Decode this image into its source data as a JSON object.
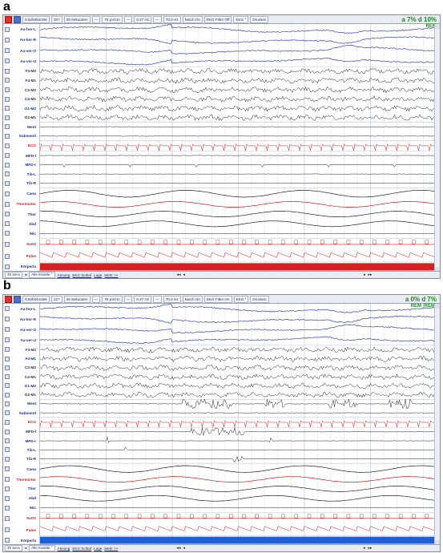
{
  "panels": [
    {
      "letter": "a",
      "toolbar": [
        "0:52h05m39s",
        "29?",
        "30 Sekunden",
        "—",
        "75 µV/cm",
        "—",
        "0.27 Hz",
        "—",
        "70.0 Hz",
        "Notch On",
        "EKG Filter Off",
        "EKG °",
        "Drucken"
      ],
      "stage_stats": "a 7%  d 10%",
      "stage_label": "REM",
      "channels": [
        {
          "label": "Au-hor-L",
          "color": "blue"
        },
        {
          "label": "Au-hor-R",
          "color": "blue"
        },
        {
          "label": "Au-ver-O",
          "color": "blue"
        },
        {
          "label": "Au-ver-U",
          "color": "blue"
        },
        {
          "label": "F3-M2",
          "color": "black"
        },
        {
          "label": "F4-M1",
          "color": "black"
        },
        {
          "label": "C3-M2",
          "color": "black"
        },
        {
          "label": "C4-M1",
          "color": "black"
        },
        {
          "label": "O1-M2",
          "color": "black"
        },
        {
          "label": "O2-M1",
          "color": "black"
        },
        {
          "label": "Ment",
          "color": "black"
        },
        {
          "label": "Submentl",
          "color": "black"
        },
        {
          "label": "ECG",
          "color": "red"
        },
        {
          "label": "MFD-l",
          "color": "black"
        },
        {
          "label": "MFD-r",
          "color": "black"
        },
        {
          "label": "Tib-L",
          "color": "black"
        },
        {
          "label": "Tib-R",
          "color": "black"
        },
        {
          "label": "Canu",
          "color": "black"
        },
        {
          "label": "Thermistor",
          "color": "red"
        },
        {
          "label": "Thor",
          "color": "black"
        },
        {
          "label": "Abd",
          "color": "black"
        },
        {
          "label": "Mic",
          "color": "black"
        },
        {
          "label": "SaO2",
          "color": "red"
        },
        {
          "label": "Pulse",
          "color": "red"
        },
        {
          "label": "Körperla",
          "color": "black"
        }
      ],
      "status": {
        "epoch": "30 secs",
        "all_channels": "Alle Kanäle °",
        "links": [
          "Atmung",
          "EKG Schlaf",
          "Lage",
          "Mehr >>"
        ]
      }
    },
    {
      "letter": "b",
      "toolbar": [
        "0:52h04m39s",
        "12?",
        "30 Sekunden",
        "—",
        "75 µV/cm",
        "—",
        "0.27 Hz",
        "—",
        "70.0 Hz",
        "Notch On",
        "EKG Filter On",
        "EKG °",
        "Drucken"
      ],
      "stage_stats": "a 0%  d 7%",
      "stage_label": "REM (REM)",
      "channels": [
        {
          "label": "Au-hor-L",
          "color": "blue"
        },
        {
          "label": "Au-hor-R",
          "color": "blue"
        },
        {
          "label": "Au-ver-O",
          "color": "blue"
        },
        {
          "label": "Au-ver-U",
          "color": "blue"
        },
        {
          "label": "F3-M2",
          "color": "black"
        },
        {
          "label": "F4-M1",
          "color": "black"
        },
        {
          "label": "C3-M2",
          "color": "black"
        },
        {
          "label": "C4-M1",
          "color": "black"
        },
        {
          "label": "O1-M2",
          "color": "black"
        },
        {
          "label": "O2-M1",
          "color": "black"
        },
        {
          "label": "Ment",
          "color": "black"
        },
        {
          "label": "Submentl",
          "color": "black"
        },
        {
          "label": "ECG",
          "color": "red"
        },
        {
          "label": "MFD-l",
          "color": "black"
        },
        {
          "label": "MFD-r",
          "color": "black"
        },
        {
          "label": "Tib-L",
          "color": "black"
        },
        {
          "label": "Tib-R",
          "color": "black"
        },
        {
          "label": "Canu",
          "color": "black"
        },
        {
          "label": "Thermistor",
          "color": "red"
        },
        {
          "label": "Thor",
          "color": "black"
        },
        {
          "label": "Abd",
          "color": "black"
        },
        {
          "label": "Mic",
          "color": "black"
        },
        {
          "label": "SaO2",
          "color": "red"
        },
        {
          "label": "Pulse",
          "color": "red"
        },
        {
          "label": "Körperla",
          "color": "black"
        }
      ],
      "status": {
        "epoch": "30 secs",
        "all_channels": "Alle Kanäle °",
        "links": [
          "Atmung",
          "EKG Schlaf",
          "Lage",
          "Mehr >>"
        ]
      }
    }
  ],
  "colors": {
    "eog": "#3b46a8",
    "eeg": "#222222",
    "ecg": "#d01818",
    "stage": "#1a8a1a",
    "body_position_a": "#d42020",
    "body_position_b": "#1f5fd6"
  }
}
